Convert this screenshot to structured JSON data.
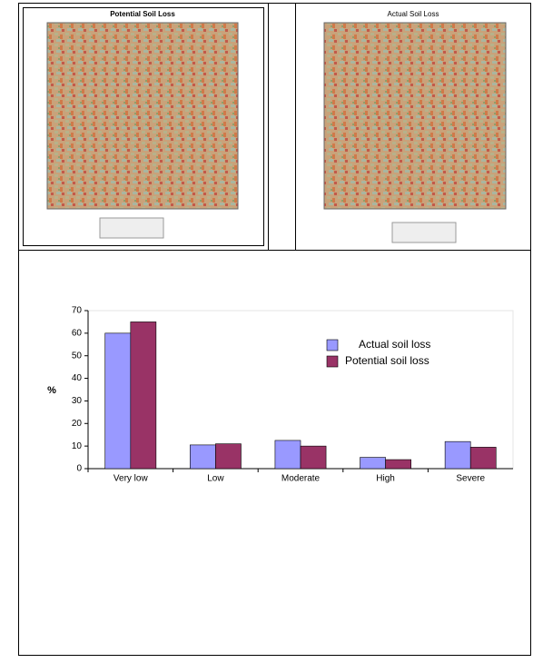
{
  "figures": [
    {
      "title": "Potential Soil Loss"
    },
    {
      "title": "Actual Soil Loss"
    }
  ],
  "chart_data": {
    "type": "bar",
    "ylabel": "%",
    "categories": [
      "Very low",
      "Low",
      "Moderate",
      "High",
      "Severe"
    ],
    "series": [
      {
        "name": "Actual soil loss",
        "color": "#9999ff",
        "values": [
          60,
          10.5,
          12.5,
          5,
          12
        ]
      },
      {
        "name": "Potential soil loss",
        "color": "#993366",
        "values": [
          65,
          11,
          10,
          4,
          9.5
        ]
      }
    ],
    "ylim": [
      0,
      70
    ],
    "yticks": [
      0,
      10,
      20,
      30,
      40,
      50,
      60,
      70
    ]
  }
}
